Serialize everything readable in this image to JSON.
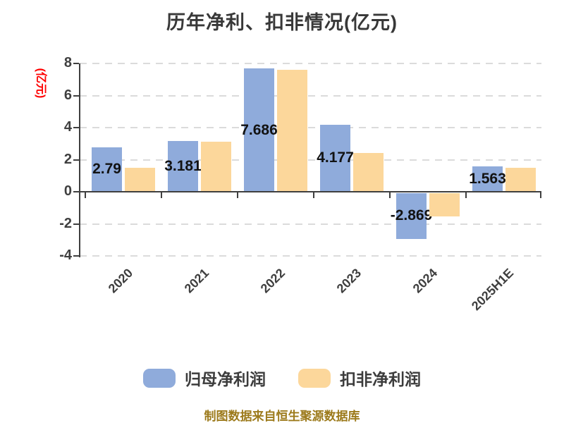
{
  "title": "历年净利、扣非情况(亿元)",
  "y_axis_unit": "(亿元)",
  "footer": "制图数据来自恒生聚源数据库",
  "colors": {
    "series_guimu": "#8fabdb",
    "series_koufei": "#fcd79b",
    "axis": "#3f3f3f",
    "gridline": "#dbdbdb",
    "title_text": "#383838",
    "value_label": "#121212",
    "y_unit_red": "#ff0000",
    "footer_gold": "#9c7a1b",
    "background": "#ffffff"
  },
  "legend": {
    "items": [
      {
        "label": "归母净利润",
        "color": "#8fabdb"
      },
      {
        "label": "扣非净利润",
        "color": "#fcd79b"
      }
    ]
  },
  "chart_data": {
    "type": "bar",
    "title": "历年净利、扣非情况(亿元)",
    "ylabel": "(亿元)",
    "categories": [
      "2020",
      "2021",
      "2022",
      "2023",
      "2024",
      "2025H1E"
    ],
    "series": [
      {
        "name": "归母净利润",
        "color": "#8fabdb",
        "values": [
          2.79,
          3.181,
          7.686,
          4.177,
          -2.869,
          1.563
        ],
        "data_labels": [
          "2.79",
          "3.181",
          "7.686",
          "4.177",
          "-2.869",
          "1.563"
        ]
      },
      {
        "name": "扣非净利润",
        "color": "#fcd79b",
        "values": [
          1.5,
          3.1,
          7.6,
          2.43,
          -1.45,
          1.5
        ],
        "data_labels": []
      }
    ],
    "ylim": [
      -4,
      8
    ],
    "y_ticks": [
      8,
      6,
      4,
      2,
      0,
      -2,
      -4
    ],
    "y_tick_labels": [
      "8",
      "6",
      "4",
      "2",
      "0",
      "-2",
      "-4"
    ],
    "grid": "dashed-horizontal",
    "legend_position": "bottom",
    "value_labels_on": "归母净利润 only, centered at bar vertical midpoint"
  }
}
